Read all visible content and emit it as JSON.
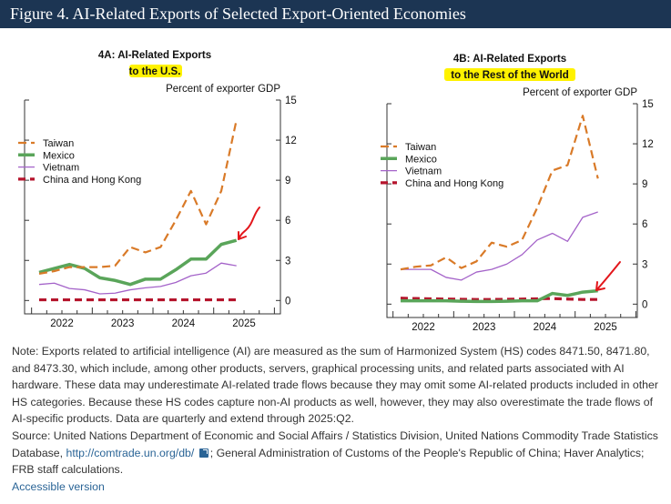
{
  "header": {
    "title": "Figure 4. AI-Related Exports of Selected Export-Oriented Economies"
  },
  "chart_data": [
    {
      "type": "line",
      "title_line1": "4A: AI-Related Exports",
      "title_line2": "to the U.S.",
      "ylabel": "Percent of exporter GDP",
      "ylim": [
        -1,
        15
      ],
      "yticks": [
        0,
        3,
        6,
        9,
        12,
        15
      ],
      "x": [
        "2022:Q1",
        "2022:Q2",
        "2022:Q3",
        "2022:Q4",
        "2023:Q1",
        "2023:Q2",
        "2023:Q3",
        "2023:Q4",
        "2024:Q1",
        "2024:Q2",
        "2024:Q3",
        "2024:Q4",
        "2025:Q1",
        "2025:Q2"
      ],
      "xtick_labels": [
        "2022",
        "2023",
        "2024",
        "2025"
      ],
      "legend_position": "upper-left",
      "series": [
        {
          "name": "Taiwan",
          "color": "#d97a28",
          "style": "dashed",
          "values": [
            2.0,
            2.2,
            2.5,
            2.5,
            2.5,
            2.6,
            4.0,
            3.6,
            4.0,
            6.0,
            8.2,
            5.7,
            8.2,
            13.5
          ]
        },
        {
          "name": "Mexico",
          "color": "#5aa55a",
          "style": "solid-thick",
          "values": [
            2.1,
            2.4,
            2.7,
            2.4,
            1.7,
            1.5,
            1.2,
            1.6,
            1.6,
            2.3,
            3.1,
            3.1,
            4.2,
            4.5
          ]
        },
        {
          "name": "Vietnam",
          "color": "#a463c9",
          "style": "solid-thin",
          "values": [
            1.2,
            1.3,
            0.9,
            0.8,
            0.5,
            0.55,
            0.8,
            0.95,
            1.05,
            1.35,
            1.85,
            2.05,
            2.8,
            2.6
          ]
        },
        {
          "name": "China and Hong Kong",
          "color": "#b5142c",
          "style": "dashed-thick",
          "values": [
            0.05,
            0.05,
            0.05,
            0.05,
            0.05,
            0.05,
            0.05,
            0.05,
            0.05,
            0.05,
            0.05,
            0.05,
            0.05,
            0.05
          ]
        }
      ]
    },
    {
      "type": "line",
      "title_line1": "4B: AI-Related Exports",
      "title_line2": "to the Rest of the World",
      "ylabel": "Percent of exporter GDP",
      "ylim": [
        -1,
        15
      ],
      "yticks": [
        0,
        3,
        6,
        9,
        12,
        15
      ],
      "x": [
        "2022:Q1",
        "2022:Q2",
        "2022:Q3",
        "2022:Q4",
        "2023:Q1",
        "2023:Q2",
        "2023:Q3",
        "2023:Q4",
        "2024:Q1",
        "2024:Q2",
        "2024:Q3",
        "2024:Q4",
        "2025:Q1",
        "2025:Q2"
      ],
      "xtick_labels": [
        "2022",
        "2023",
        "2024",
        "2025"
      ],
      "legend_position": "upper-left",
      "series": [
        {
          "name": "Taiwan",
          "color": "#d97a28",
          "style": "dashed",
          "values": [
            2.6,
            2.8,
            2.9,
            3.5,
            2.7,
            3.2,
            4.6,
            4.3,
            4.8,
            7.2,
            10.0,
            10.4,
            14.1,
            9.4
          ]
        },
        {
          "name": "Mexico",
          "color": "#5aa55a",
          "style": "solid-thick",
          "values": [
            0.25,
            0.25,
            0.25,
            0.25,
            0.22,
            0.2,
            0.2,
            0.22,
            0.25,
            0.25,
            0.8,
            0.65,
            0.9,
            1.0
          ]
        },
        {
          "name": "Vietnam",
          "color": "#a463c9",
          "style": "solid-thin",
          "values": [
            2.6,
            2.6,
            2.6,
            2.0,
            1.8,
            2.4,
            2.6,
            3.0,
            3.7,
            4.8,
            5.3,
            4.7,
            6.5,
            6.9
          ]
        },
        {
          "name": "China and Hong Kong",
          "color": "#b5142c",
          "style": "dashed-thick",
          "values": [
            0.45,
            0.42,
            0.4,
            0.38,
            0.36,
            0.35,
            0.35,
            0.36,
            0.38,
            0.4,
            0.42,
            0.38,
            0.35,
            0.35
          ]
        }
      ]
    }
  ],
  "note": {
    "text": "Note: Exports related to artificial intelligence (AI) are measured as the sum of Harmonized System (HS) codes 8471.50, 8471.80, and 8473.30, which include, among other products, servers, graphical processing units, and related parts associated with AI hardware. These data may underestimate AI-related trade flows because they may omit some AI-related products included in other HS categories. Because these HS codes capture non-AI products as well, however, they may also overestimate the trade flows of AI-specific products. Data are quarterly and extend through 2025:Q2.",
    "source_prefix": "Source: United Nations Department of Economic and Social Affairs / Statistics Division, United Nations Commodity Trade Statistics Database, ",
    "source_link": "http://comtrade.un.org/db/",
    "source_suffix": "; General Administration of Customs of the People's Republic of China; Haver Analytics; FRB staff calculations.",
    "accessible_link": "Accessible version"
  }
}
